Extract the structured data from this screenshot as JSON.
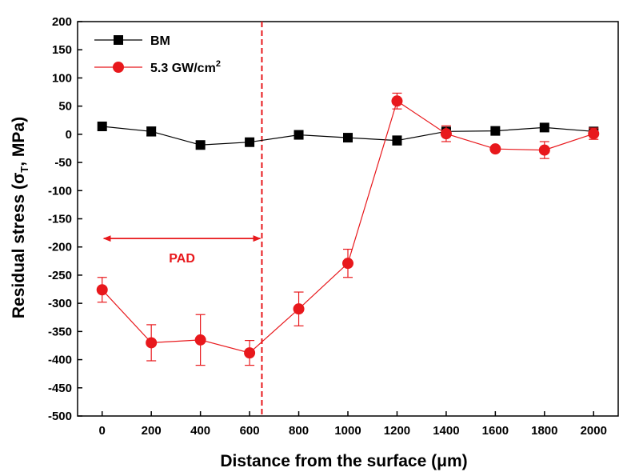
{
  "chart_data": {
    "type": "line",
    "title": "",
    "xlabel": "Distance from the surface (μm)",
    "ylabel_main": "Residual stress (σ",
    "ylabel_sub": "T",
    "ylabel_tail": ", MPa)",
    "xlim": [
      -100,
      2100
    ],
    "ylim": [
      -500,
      200
    ],
    "xticks": [
      0,
      200,
      400,
      600,
      800,
      1000,
      1200,
      1400,
      1600,
      1800,
      2000
    ],
    "yticks": [
      200,
      150,
      100,
      50,
      0,
      -50,
      -100,
      -150,
      -200,
      -250,
      -300,
      -350,
      -400,
      -450,
      -500
    ],
    "grid": false,
    "legend_position": "top-left",
    "series": [
      {
        "name": "BM",
        "color": "#000000",
        "marker": "square",
        "x": [
          0,
          200,
          400,
          600,
          800,
          1000,
          1200,
          1400,
          1600,
          1800,
          2000
        ],
        "y": [
          14,
          5,
          -19,
          -14,
          -1,
          -6,
          -11,
          5,
          6,
          12,
          5
        ],
        "err": [
          0,
          8,
          0,
          0,
          0,
          0,
          8,
          5,
          0,
          0,
          4
        ]
      },
      {
        "name_main": "5.3 GW/cm",
        "name_sup": "2",
        "color": "#e8181c",
        "marker": "circle",
        "x": [
          0,
          200,
          400,
          600,
          800,
          1000,
          1200,
          1400,
          1600,
          1800,
          2000
        ],
        "y": [
          -276,
          -370,
          -365,
          -388,
          -310,
          -229,
          59,
          1,
          -26,
          -28,
          1
        ],
        "err": [
          22,
          32,
          45,
          22,
          30,
          25,
          14,
          14,
          0,
          15,
          10
        ]
      }
    ],
    "vline": {
      "x": 650,
      "color": "#e8181c",
      "style": "dashed"
    },
    "annotation": {
      "text": "PAD",
      "x_from": 0,
      "x_to": 650,
      "y": -185,
      "color": "#e8181c"
    }
  }
}
